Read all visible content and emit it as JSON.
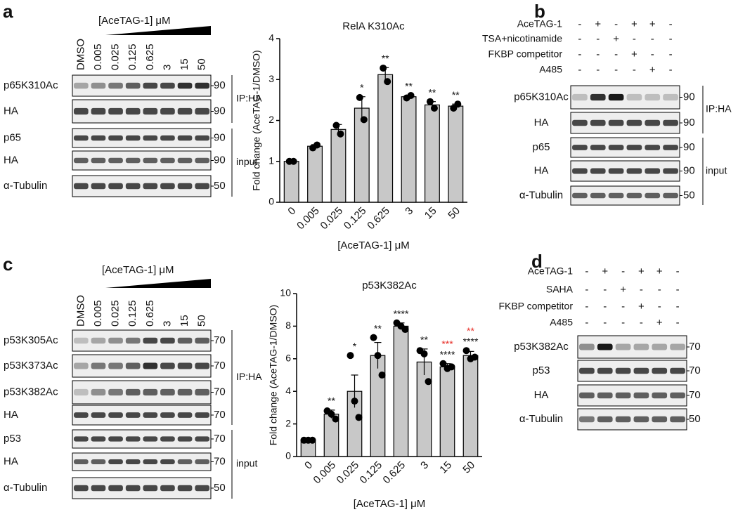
{
  "chart_data": [
    {
      "type": "bar",
      "title": "RelA K310Ac",
      "y_label": "Fold change (AceTAG-1/DMSO)",
      "x_label": "[AceTAG-1] μM",
      "categories": [
        "0",
        "0.005",
        "0.025",
        "0.125",
        "0.625",
        "3",
        "15",
        "50"
      ],
      "values": [
        1.0,
        1.37,
        1.78,
        2.3,
        3.12,
        2.58,
        2.38,
        2.35
      ],
      "errors": [
        0.02,
        0.04,
        0.12,
        0.28,
        0.17,
        0.03,
        0.08,
        0.05
      ],
      "replicates": [
        [
          1.0,
          1.0
        ],
        [
          1.33,
          1.4
        ],
        [
          1.88,
          1.67
        ],
        [
          2.56,
          2.02
        ],
        [
          3.28,
          2.95
        ],
        [
          2.55,
          2.61
        ],
        [
          2.46,
          2.3
        ],
        [
          2.3,
          2.4
        ]
      ],
      "significance": [
        null,
        null,
        null,
        "*",
        "**",
        "**",
        "**",
        "**"
      ],
      "color": "#c8c8c8",
      "ylim": [
        0,
        4
      ],
      "yticks": [
        0,
        1,
        2,
        3,
        4
      ]
    },
    {
      "type": "bar",
      "title": "p53K382Ac",
      "y_label": "Fold change (AceTAG-1/DMSO)",
      "x_label": "[AceTAG-1] μM",
      "categories": [
        "0",
        "0.005",
        "0.025",
        "0.125",
        "0.625",
        "3",
        "15",
        "50"
      ],
      "values": [
        1.0,
        2.6,
        4.0,
        6.2,
        8.0,
        5.8,
        5.5,
        6.2
      ],
      "errors": [
        0.05,
        0.25,
        1.0,
        0.8,
        0.2,
        0.8,
        0.2,
        0.25
      ],
      "replicates": [
        [
          1.0,
          1.0,
          1.0
        ],
        [
          2.8,
          2.6,
          2.3
        ],
        [
          6.2,
          3.4,
          2.4
        ],
        [
          7.3,
          6.2,
          5.0
        ],
        [
          8.2,
          8.0,
          7.8
        ],
        [
          6.5,
          6.3,
          4.6
        ],
        [
          5.7,
          5.4,
          5.5
        ],
        [
          6.5,
          6.0,
          6.1
        ]
      ],
      "significance": [
        null,
        "**",
        "*",
        "**",
        "****",
        "**",
        "****",
        "****"
      ],
      "significance_red": [
        null,
        null,
        null,
        null,
        null,
        null,
        "***",
        "**"
      ],
      "significance_red_color": "#e8312a",
      "color": "#c8c8c8",
      "ylim": [
        0,
        10
      ],
      "yticks": [
        0,
        2,
        4,
        6,
        8,
        10
      ]
    }
  ],
  "blots": [
    {
      "panel": "a",
      "header": "[AceTAG-1] μM",
      "lanes": [
        "DMSO",
        "0.005",
        "0.025",
        "0.125",
        "0.625",
        "3",
        "15",
        "50"
      ],
      "rows": [
        {
          "label": "p65K310Ac",
          "mw": "90"
        },
        {
          "label": "HA",
          "mw": "90"
        },
        {
          "label": "p65",
          "mw": "90"
        },
        {
          "label": "HA",
          "mw": "90"
        },
        {
          "label": "α-Tubulin",
          "mw": "50"
        }
      ],
      "groups": [
        {
          "label": "IP:HA"
        },
        {
          "label": "input"
        }
      ]
    },
    {
      "panel": "b",
      "treatments": [
        {
          "label": "AceTAG-1",
          "signs": [
            "-",
            "+",
            "-",
            "+",
            "+",
            "-"
          ]
        },
        {
          "label": "TSA+nicotinamide",
          "signs": [
            "-",
            "-",
            "+",
            "-",
            "-",
            "-"
          ]
        },
        {
          "label": "FKBP competitor",
          "signs": [
            "-",
            "-",
            "-",
            "+",
            "-",
            "-"
          ]
        },
        {
          "label": "A485",
          "signs": [
            "-",
            "-",
            "-",
            "-",
            "+",
            "-"
          ]
        }
      ],
      "rows": [
        {
          "label": "p65K310Ac",
          "mw": "90"
        },
        {
          "label": "HA",
          "mw": "90"
        },
        {
          "label": "p65",
          "mw": "90"
        },
        {
          "label": "HA",
          "mw": "90"
        },
        {
          "label": "α-Tubulin",
          "mw": "50"
        }
      ],
      "groups": [
        {
          "label": "IP:HA"
        },
        {
          "label": "input"
        }
      ]
    },
    {
      "panel": "c",
      "header": "[AceTAG-1] μM",
      "lanes": [
        "DMSO",
        "0.005",
        "0.025",
        "0.125",
        "0.625",
        "3",
        "15",
        "50"
      ],
      "rows": [
        {
          "label": "p53K305Ac",
          "mw": "70"
        },
        {
          "label": "p53K373Ac",
          "mw": "70"
        },
        {
          "label": "p53K382Ac",
          "mw": "70"
        },
        {
          "label": "HA",
          "mw": "70"
        },
        {
          "label": "p53",
          "mw": "70"
        },
        {
          "label": "HA",
          "mw": "70"
        },
        {
          "label": "α-Tubulin",
          "mw": "50"
        }
      ],
      "groups": [
        {
          "label": "IP:HA"
        },
        {
          "label": "input"
        }
      ]
    },
    {
      "panel": "d",
      "treatments": [
        {
          "label": "AceTAG-1",
          "signs": [
            "-",
            "+",
            "-",
            "+",
            "+",
            "-"
          ]
        },
        {
          "label": "SAHA",
          "signs": [
            "-",
            "-",
            "+",
            "-",
            "-",
            "-"
          ]
        },
        {
          "label": "FKBP competitor",
          "signs": [
            "-",
            "-",
            "-",
            "+",
            "-",
            "-"
          ]
        },
        {
          "label": "A485",
          "signs": [
            "-",
            "-",
            "-",
            "-",
            "+",
            "-"
          ]
        }
      ],
      "rows": [
        {
          "label": "p53K382Ac",
          "mw": "70"
        },
        {
          "label": "p53",
          "mw": "70"
        },
        {
          "label": "HA",
          "mw": "70"
        },
        {
          "label": "α-Tubulin",
          "mw": "50"
        }
      ]
    }
  ]
}
